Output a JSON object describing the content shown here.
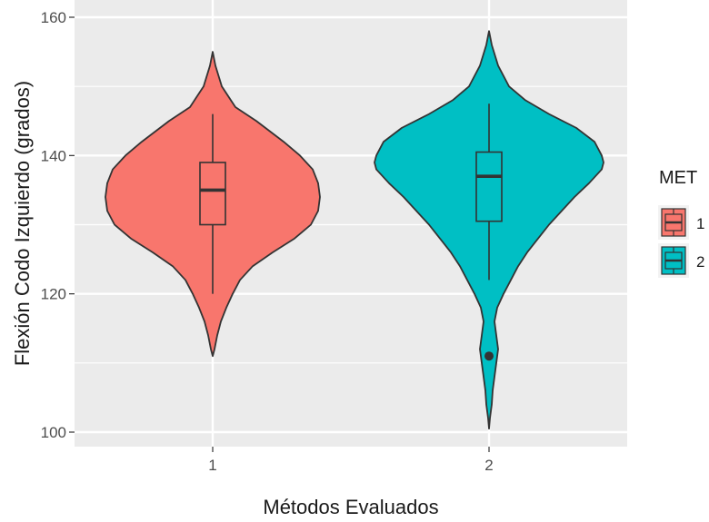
{
  "chart_data": {
    "type": "violin",
    "xlabel": "Métodos Evaluados",
    "ylabel": "Flexión Codo Izquierdo (grados)",
    "categories": [
      "1",
      "2"
    ],
    "ylim": [
      98,
      161
    ],
    "yticks": [
      100,
      120,
      140,
      160
    ],
    "grid": true,
    "legend": {
      "title": "MET",
      "position": "right",
      "entries": [
        {
          "label": "1",
          "color": "#F8766D"
        },
        {
          "label": "2",
          "color": "#00BFC4"
        }
      ]
    },
    "series": [
      {
        "category": "1",
        "color": "#F8766D",
        "box": {
          "lower_whisker": 120,
          "q1": 130,
          "median": 135,
          "q3": 139,
          "upper_whisker": 146
        },
        "outliers": [],
        "density": {
          "y": [
            155,
            153,
            150,
            147,
            145,
            142,
            140,
            138,
            136,
            134,
            132,
            130,
            128,
            126,
            124,
            122,
            120,
            118,
            116,
            114,
            112,
            111
          ],
          "halfwidth": [
            0,
            3,
            10,
            25,
            48,
            78,
            96,
            110,
            116,
            118,
            116,
            108,
            90,
            66,
            44,
            30,
            22,
            15,
            9,
            5,
            2,
            0
          ]
        }
      },
      {
        "category": "2",
        "color": "#00BFC4",
        "box": {
          "lower_whisker": 122,
          "q1": 130.5,
          "median": 137,
          "q3": 140.5,
          "upper_whisker": 147.5
        },
        "outliers": [
          111
        ],
        "density": {
          "y": [
            158,
            156,
            153,
            150,
            148,
            146,
            144,
            142,
            140,
            139,
            138,
            136,
            134,
            132,
            130,
            128,
            126,
            124,
            122,
            120,
            118,
            116,
            114,
            112,
            110,
            108,
            106,
            104,
            102,
            100.5
          ],
          "halfwidth": [
            0,
            3,
            10,
            22,
            40,
            66,
            96,
            116,
            124,
            126,
            124,
            110,
            94,
            80,
            66,
            54,
            42,
            32,
            24,
            16,
            9,
            6,
            8,
            10,
            8,
            6,
            4,
            3,
            1,
            0
          ]
        }
      }
    ]
  }
}
